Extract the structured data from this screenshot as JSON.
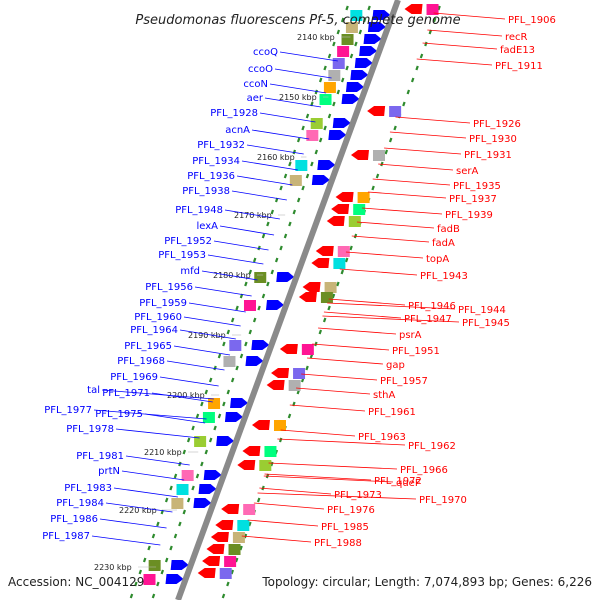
{
  "title": "Pseudomonas fluorescens Pf-5, complete genome",
  "footer": {
    "accession": "Accession: NC_004129",
    "summary": "Topology: circular; Length: 7,074,893 bp; Genes: 6,226"
  },
  "colors": {
    "forward": "#0000ff",
    "reverse": "#ff0000",
    "backbone": "#808080",
    "tick": "#2e8b2e"
  },
  "scale": [
    "2140 kbp",
    "2150 kbp",
    "2160 kbp",
    "2170 kbp",
    "2180 kbp",
    "2190 kbp",
    "2200 kbp",
    "2210 kbp",
    "2220 kbp",
    "2230 kbp"
  ],
  "left_labels": [
    "ccoQ",
    "ccoO",
    "ccoN",
    "aer",
    "PFL_1928",
    "acnA",
    "PFL_1932",
    "PFL_1934",
    "PFL_1936",
    "PFL_1938",
    "PFL_1948",
    "lexA",
    "PFL_1952",
    "PFL_1953",
    "mfd",
    "PFL_1956",
    "PFL_1959",
    "PFL_1960",
    "PFL_1964",
    "PFL_1965",
    "PFL_1968",
    "PFL_1969",
    "tal",
    "PFL_1971",
    "PFL_1977",
    "PFL_1975",
    "PFL_1978",
    "PFL_1981",
    "prtN",
    "PFL_1983",
    "PFL_1984",
    "PFL_1986",
    "PFL_1987"
  ],
  "right_labels": [
    "PFL_1906",
    "recR",
    "fadE13",
    "PFL_1911",
    "PFL_1926",
    "PFL_1930",
    "PFL_1931",
    "serA",
    "PFL_1935",
    "PFL_1937",
    "PFL_1939",
    "fadB",
    "fadA",
    "topA",
    "PFL_1943",
    "PFL_1946",
    "PFL_1944",
    "PFL_1947",
    "PFL_1945",
    "psrA",
    "PFL_1951",
    "gap",
    "PFL_1957",
    "sthA",
    "PFL_1961",
    "PFL_1963",
    "PFL_1962",
    "PFL_1966",
    "queF",
    "PFL_1972",
    "PFL_1970",
    "PFL_1973",
    "PFL_1976",
    "PFL_1985",
    "PFL_1988"
  ]
}
